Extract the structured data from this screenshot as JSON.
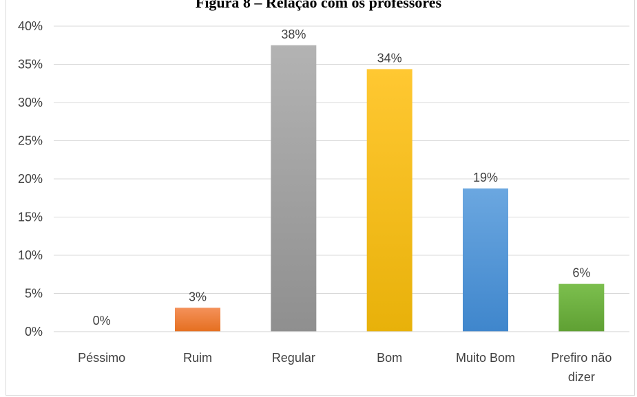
{
  "chart_data": {
    "type": "bar",
    "title": "Figura 8 – Relação com os professores",
    "xlabel": "",
    "ylabel": "",
    "categories": [
      "Péssimo",
      "Ruim",
      "Regular",
      "Bom",
      "Muito Bom",
      "Prefiro não dizer"
    ],
    "category_lines": [
      [
        "Péssimo"
      ],
      [
        "Ruim"
      ],
      [
        "Regular"
      ],
      [
        "Bom"
      ],
      [
        "Muito Bom"
      ],
      [
        "Prefiro não",
        "dizer"
      ]
    ],
    "values": [
      0,
      3.125,
      37.5,
      34.375,
      18.75,
      6.25
    ],
    "data_labels": [
      "0%",
      "3%",
      "38%",
      "34%",
      "19%",
      "6%"
    ],
    "bar_colors": [
      [
        "#ED7D31",
        "#ED7D31"
      ],
      [
        "#F4915A",
        "#E56F1F"
      ],
      [
        "#B3B3B3",
        "#8F8F8F"
      ],
      [
        "#FFC832",
        "#E8B10A"
      ],
      [
        "#6BA7E0",
        "#3F86CC"
      ],
      [
        "#7CBF4E",
        "#5FA033"
      ]
    ],
    "ylim": [
      0,
      40
    ],
    "yticks": [
      0,
      5,
      10,
      15,
      20,
      25,
      30,
      35,
      40
    ],
    "ytick_labels": [
      "0%",
      "5%",
      "10%",
      "15%",
      "20%",
      "25%",
      "30%",
      "35%",
      "40%"
    ],
    "grid": true,
    "gridline_color": "#d9d9d9",
    "legend": "none"
  }
}
